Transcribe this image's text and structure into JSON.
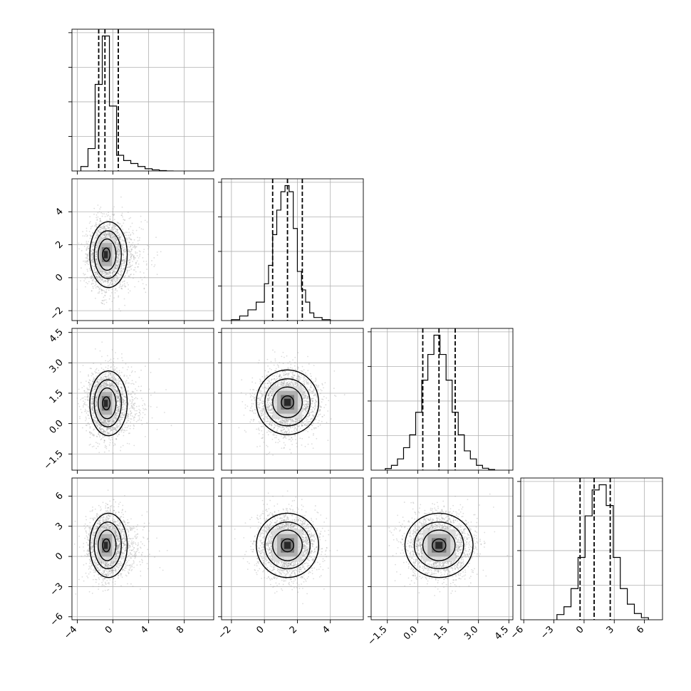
{
  "chart_data": {
    "type": "corner",
    "n_params": 4,
    "grid": true,
    "colors": {
      "hist_line": "#000000",
      "quantile_line": "#000000",
      "grid": "#b0b0b0",
      "scatter": "#9a9a9a",
      "contour": "#000000"
    },
    "params": [
      {
        "range": [
          -4.6,
          11.3
        ],
        "ticks": [
          -4,
          0,
          4,
          8
        ],
        "tick_labels": [
          "−4",
          "0",
          "4",
          "8"
        ],
        "quantiles": [
          -1.6,
          -0.9,
          0.6
        ],
        "hist_bins": [
          -3.6,
          -2.8,
          -2.0,
          -1.2,
          -0.4,
          0.4,
          1.2,
          2.0,
          2.8,
          3.6,
          4.4,
          5.2,
          6.0,
          6.8
        ],
        "hist_counts": [
          0.12,
          0.6,
          2.32,
          3.62,
          1.74,
          0.42,
          0.28,
          0.2,
          0.12,
          0.06,
          0.03,
          0.01,
          0
        ]
      },
      {
        "range": [
          -2.6,
          6.0
        ],
        "ticks": [
          -2,
          0,
          2,
          4
        ],
        "tick_labels": [
          "−2",
          "0",
          "2",
          "4"
        ],
        "quantiles": [
          0.5,
          1.4,
          2.3
        ],
        "hist_bins": [
          -2.0,
          -1.5,
          -1.0,
          -0.5,
          0.0,
          0.25,
          0.5,
          0.75,
          1.0,
          1.25,
          1.5,
          1.75,
          2.0,
          2.25,
          2.5,
          2.75,
          3.0,
          3.5,
          4.0
        ],
        "hist_counts": [
          0.03,
          0.15,
          0.35,
          0.6,
          1.2,
          1.8,
          2.8,
          3.6,
          4.2,
          4.4,
          4.2,
          3.0,
          1.6,
          1.0,
          0.6,
          0.25,
          0.1,
          0.03
        ]
      },
      {
        "range": [
          -2.3,
          4.7
        ],
        "ticks": [
          -1.5,
          0,
          1.5,
          3,
          4.5
        ],
        "tick_labels": [
          "−1.5",
          "0.0",
          "1.5",
          "3.0",
          "4.5"
        ],
        "quantiles": [
          0.25,
          1.05,
          1.85
        ],
        "hist_bins": [
          -1.6,
          -1.3,
          -1.0,
          -0.7,
          -0.4,
          -0.1,
          0.2,
          0.5,
          0.8,
          1.1,
          1.4,
          1.7,
          2.0,
          2.3,
          2.6,
          2.9,
          3.2,
          3.5,
          3.8
        ],
        "hist_counts": [
          0.05,
          0.15,
          0.35,
          0.7,
          1.1,
          1.8,
          2.8,
          3.6,
          4.2,
          3.6,
          2.8,
          1.8,
          1.1,
          0.6,
          0.35,
          0.15,
          0.06,
          0.02
        ]
      },
      {
        "range": [
          -6.3,
          7.8
        ],
        "ticks": [
          -6,
          -3,
          0,
          3,
          6
        ],
        "tick_labels": [
          "−6",
          "−3",
          "0",
          "3",
          "6"
        ],
        "quantiles": [
          -0.4,
          1.0,
          2.6
        ],
        "hist_bins": [
          -2.7,
          -2.0,
          -1.3,
          -0.6,
          0.1,
          0.8,
          1.5,
          2.2,
          2.9,
          3.6,
          4.3,
          5.0,
          5.7,
          6.4
        ],
        "hist_counts": [
          0.1,
          0.25,
          0.6,
          1.2,
          2.0,
          2.5,
          2.6,
          2.2,
          1.2,
          0.6,
          0.3,
          0.12,
          0.04
        ]
      }
    ],
    "pairs": [
      {
        "x": 0,
        "y": 1,
        "center": [
          -0.8,
          1.4
        ],
        "spread": [
          1.0,
          1.0
        ],
        "scatter_points": 2500
      },
      {
        "x": 0,
        "y": 2,
        "center": [
          -0.8,
          1.0
        ],
        "spread": [
          1.0,
          0.8
        ],
        "scatter_points": 2500
      },
      {
        "x": 1,
        "y": 2,
        "center": [
          1.4,
          1.05
        ],
        "spread": [
          0.9,
          0.8
        ],
        "scatter_points": 2500
      },
      {
        "x": 0,
        "y": 3,
        "center": [
          -0.8,
          1.1
        ],
        "spread": [
          1.0,
          1.6
        ],
        "scatter_points": 2500
      },
      {
        "x": 1,
        "y": 3,
        "center": [
          1.4,
          1.1
        ],
        "spread": [
          0.9,
          1.6
        ],
        "scatter_points": 2500
      },
      {
        "x": 2,
        "y": 3,
        "center": [
          1.05,
          1.1
        ],
        "spread": [
          0.8,
          1.6
        ],
        "scatter_points": 2500
      }
    ]
  }
}
